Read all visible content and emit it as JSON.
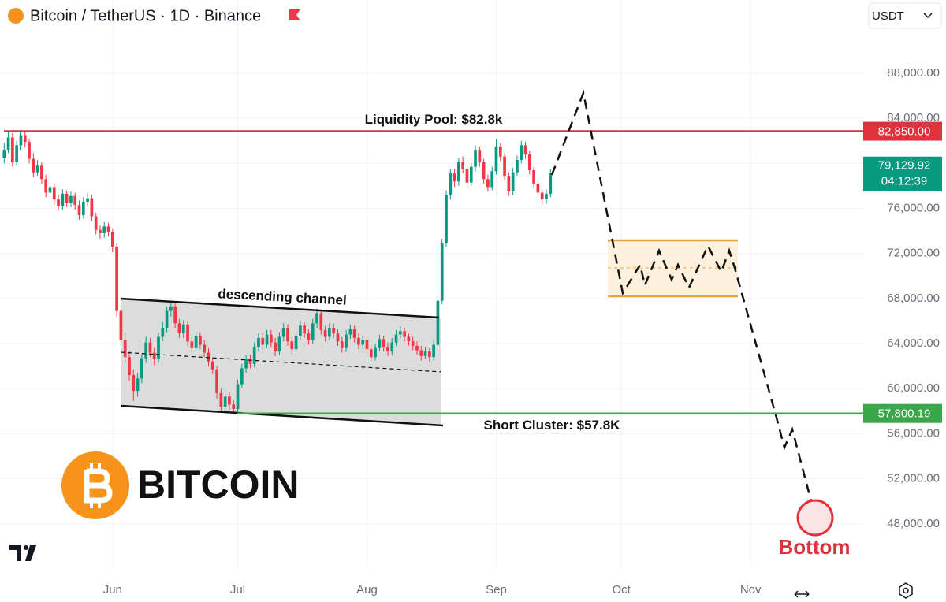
{
  "chart_data": {
    "type": "candlestick",
    "title": "Bitcoin / TetherUS · 1D · Binance",
    "currency": "USDT",
    "logo_text": "BITCOIN",
    "bottom_label": "Bottom",
    "channel_label": "descending channel",
    "up_color": "#089981",
    "down_color": "#f23645",
    "grid": true,
    "xlim": [
      -1,
      206
    ],
    "xticks": [
      {
        "value": 26,
        "label": "Jun"
      },
      {
        "value": 56,
        "label": "Jul"
      },
      {
        "value": 87,
        "label": "Aug"
      },
      {
        "value": 118,
        "label": "Sep"
      },
      {
        "value": 148,
        "label": "Oct"
      },
      {
        "value": 179,
        "label": "Nov"
      }
    ],
    "ylim": [
      44000,
      94500
    ],
    "yticks": [
      {
        "value": 48000,
        "label": "48,000.00"
      },
      {
        "value": 52000,
        "label": "52,000.00"
      },
      {
        "value": 56000,
        "label": "56,000.00"
      },
      {
        "value": 60000,
        "label": "60,000.00"
      },
      {
        "value": 64000,
        "label": "64,000.00"
      },
      {
        "value": 68000,
        "label": "68,000.00"
      },
      {
        "value": 72000,
        "label": "72,000.00"
      },
      {
        "value": 76000,
        "label": "76,000.00"
      },
      {
        "value": 80000,
        "label": "80,000.00"
      },
      {
        "value": 84000,
        "label": "84,000.00"
      },
      {
        "value": 88000,
        "label": "88,000.00"
      }
    ],
    "levels": [
      {
        "value": 82850,
        "label": "82,850.00",
        "text": "Liquidity Pool: $82.8k",
        "color": "#e0323c"
      },
      {
        "value": 57800.19,
        "label": "57,800.19",
        "text": "Short Cluster: $57.8K",
        "color": "#3aa64a"
      }
    ],
    "last_price": {
      "value": 79129.92,
      "label": "79,129.92",
      "countdown": "04:12:39",
      "color": "#089981"
    },
    "open": [
      80500,
      81200,
      82300,
      80100,
      81600,
      82500,
      81900,
      80400,
      79200,
      79800,
      78600,
      77400,
      77900,
      76800,
      76200,
      77300,
      76500,
      77100,
      76300,
      75400,
      76600,
      76900,
      75300,
      74100,
      73800,
      74400,
      73900,
      72600,
      66900,
      64300,
      62800,
      61200,
      59800,
      60900,
      62700,
      64100,
      63200,
      62600,
      64600,
      65400,
      66900,
      67300,
      65800,
      64900,
      65700,
      64200,
      63600,
      64700,
      63900,
      63200,
      62400,
      61700,
      59600,
      58400,
      59300,
      58600,
      58200,
      60400,
      61800,
      62600,
      62200,
      63700,
      64500,
      63900,
      64800,
      64100,
      63300,
      64600,
      65400,
      64200,
      63500,
      64700,
      65600,
      64900,
      64300,
      65800,
      66700,
      65200,
      64600,
      65400,
      64900,
      64200,
      63600,
      64800,
      65300,
      64500,
      63900,
      64300,
      63500,
      62800,
      63600,
      64400,
      63700,
      63300,
      64100,
      64800,
      65100,
      64600,
      64200,
      63800,
      63400,
      62900,
      63300,
      62800,
      63900,
      67800,
      72900,
      77200,
      79100,
      78400,
      80100,
      79500,
      78300,
      79700,
      81200,
      80100,
      78600,
      77900,
      79300,
      81500,
      80600,
      78900,
      77500,
      79200,
      80300,
      81600,
      80800,
      79400,
      78200,
      77400,
      76800,
      77300
    ],
    "high": [
      81800,
      82800,
      82700,
      82000,
      82900,
      82800,
      82200,
      80900,
      80300,
      80100,
      79000,
      78400,
      78200,
      77200,
      77700,
      77600,
      77500,
      77400,
      76700,
      77000,
      77400,
      77200,
      75600,
      74500,
      74800,
      74700,
      74200,
      72900,
      67400,
      64900,
      63300,
      61700,
      61400,
      63100,
      64600,
      64500,
      63600,
      65000,
      65900,
      67300,
      67800,
      67600,
      66200,
      66100,
      66000,
      64600,
      65100,
      65000,
      64300,
      63600,
      62800,
      62000,
      60000,
      59800,
      59700,
      59000,
      60800,
      62200,
      63000,
      63000,
      64100,
      64900,
      64900,
      65200,
      65200,
      64500,
      65000,
      65800,
      65700,
      64600,
      65100,
      66000,
      65900,
      65300,
      66200,
      67100,
      67000,
      65600,
      65800,
      65800,
      65300,
      64600,
      65200,
      65700,
      65600,
      64900,
      64700,
      64600,
      63900,
      64000,
      64800,
      64700,
      64100,
      64500,
      65200,
      65500,
      65400,
      64900,
      64600,
      64200,
      63800,
      63700,
      63600,
      64300,
      68200,
      73300,
      77600,
      79500,
      79500,
      80500,
      80600,
      79800,
      80100,
      81600,
      81500,
      80400,
      79000,
      79700,
      82200,
      81800,
      80900,
      79200,
      79600,
      80700,
      82000,
      81900,
      81100,
      79700,
      78600,
      77700,
      77700,
      79500
    ],
    "low": [
      80000,
      80900,
      79700,
      79800,
      81200,
      81400,
      80000,
      78800,
      78900,
      78200,
      77000,
      77000,
      76300,
      75800,
      75900,
      76100,
      76100,
      75900,
      75000,
      75100,
      76200,
      74900,
      73700,
      73300,
      73400,
      73500,
      72100,
      66400,
      63800,
      62300,
      60700,
      58900,
      59300,
      60500,
      62300,
      62800,
      62100,
      62300,
      64200,
      65000,
      66400,
      65400,
      64500,
      64500,
      63800,
      63200,
      63300,
      63500,
      62800,
      62000,
      61300,
      59100,
      57900,
      58000,
      58100,
      57800,
      57900,
      60100,
      61400,
      61800,
      61900,
      63300,
      63500,
      63600,
      63700,
      62900,
      63000,
      64200,
      63800,
      63100,
      63200,
      64300,
      64500,
      63900,
      64000,
      65400,
      64800,
      64200,
      64300,
      64500,
      63800,
      63200,
      63300,
      64400,
      64100,
      63500,
      63500,
      63100,
      62400,
      62500,
      63300,
      63300,
      62900,
      63000,
      63800,
      64500,
      64200,
      63800,
      63400,
      63000,
      62500,
      62600,
      62400,
      62500,
      63600,
      67500,
      72600,
      76800,
      77900,
      78000,
      79100,
      77900,
      78000,
      79300,
      79700,
      78200,
      77500,
      77600,
      79000,
      80200,
      78500,
      77100,
      77200,
      78900,
      80000,
      80400,
      79000,
      77800,
      77000,
      76300,
      76400,
      77000
    ],
    "close": [
      81200,
      82300,
      80100,
      81600,
      82500,
      81900,
      80400,
      79200,
      79800,
      78600,
      77400,
      77900,
      76800,
      76200,
      77300,
      76500,
      77100,
      76300,
      75400,
      76600,
      76900,
      75300,
      74100,
      73800,
      74400,
      73900,
      72600,
      66900,
      64300,
      62800,
      61200,
      59800,
      60900,
      62700,
      64100,
      63200,
      62600,
      64600,
      65400,
      66900,
      67300,
      65800,
      64900,
      65700,
      64200,
      63600,
      64700,
      63900,
      63200,
      62400,
      61700,
      59600,
      58400,
      59300,
      58600,
      58200,
      60400,
      61800,
      62600,
      62200,
      63700,
      64500,
      63900,
      64800,
      64100,
      63300,
      64600,
      65400,
      64200,
      63500,
      64700,
      65600,
      64900,
      64300,
      65800,
      66700,
      65200,
      64600,
      65400,
      64900,
      64200,
      63600,
      64800,
      65300,
      64500,
      63900,
      64300,
      63500,
      62800,
      63600,
      64400,
      63700,
      63300,
      64100,
      64800,
      65100,
      64600,
      64200,
      63800,
      63400,
      62900,
      63300,
      62800,
      63900,
      67800,
      72900,
      77200,
      79100,
      78400,
      80100,
      79500,
      78300,
      79700,
      81200,
      80100,
      78600,
      77900,
      79300,
      81500,
      80600,
      78900,
      77500,
      79200,
      80300,
      81600,
      80800,
      79400,
      78200,
      77400,
      76800,
      77300,
      79129.92
    ]
  }
}
